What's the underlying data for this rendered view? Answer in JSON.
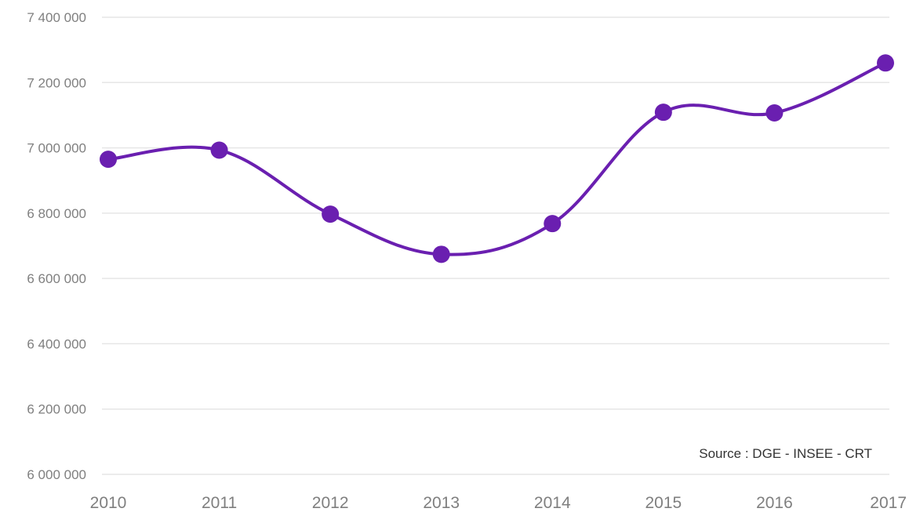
{
  "chart_data": {
    "type": "line",
    "smooth": true,
    "x": [
      "2010",
      "2011",
      "2012",
      "2013",
      "2014",
      "2015",
      "2016",
      "2017"
    ],
    "series": [
      {
        "values": [
          6965000,
          6993000,
          6797000,
          6674000,
          6768000,
          7109000,
          7107000,
          7260000
        ]
      }
    ],
    "ylim": [
      6000000,
      7400000
    ],
    "yticks": [
      6000000,
      6200000,
      6400000,
      6600000,
      6800000,
      7000000,
      7200000,
      7400000
    ],
    "ytick_labels": [
      "6 000 000",
      "6 200 000",
      "6 400 000",
      "6 600 000",
      "6 800 000",
      "7 000 000",
      "7 200 000",
      "7 400 000"
    ],
    "grid": "horizontal",
    "title": "",
    "xlabel": "",
    "ylabel": "",
    "annotation": "Source : DGE - INSEE - CRT",
    "line_color": "#6a1fb0",
    "grid_color": "#e6e6e6",
    "text_color": "#7f7f7f"
  }
}
